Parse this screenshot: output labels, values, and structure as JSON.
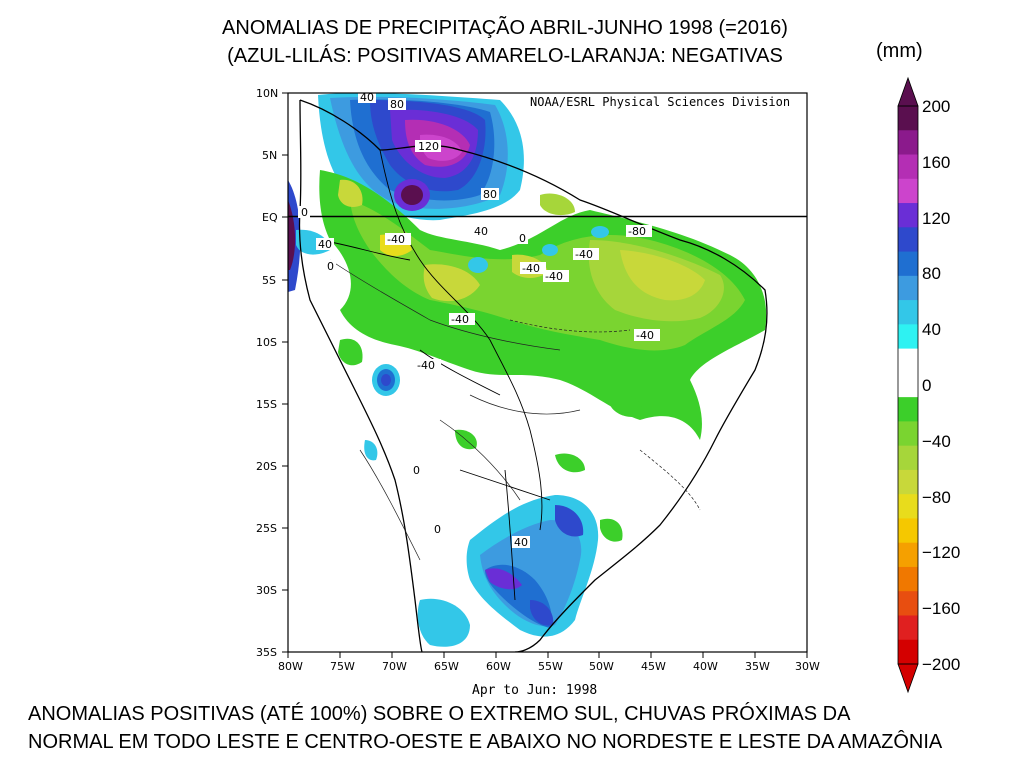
{
  "title": {
    "line1": "ANOMALIAS DE PRECIPITAÇÃO ABRIL-JUNHO 1998 (=2016)",
    "line2": "(AZUL-LILÁS: POSITIVAS   AMARELO-LARANJA: NEGATIVAS"
  },
  "units": "(mm)",
  "map": {
    "source": "NOAA/ESRL Physical Sciences Division",
    "period": "Apr to Jun: 1998",
    "lat_labels": [
      "10N",
      "5N",
      "EQ",
      "5S",
      "10S",
      "15S",
      "20S",
      "25S",
      "30S",
      "35S"
    ],
    "lon_labels": [
      "80W",
      "75W",
      "70W",
      "65W",
      "60W",
      "55W",
      "50W",
      "45W",
      "40W",
      "35W",
      "30W"
    ],
    "contour_labels": [
      "40",
      "80",
      "120",
      "80",
      "0",
      "-40",
      "40",
      "0",
      "-40",
      "40",
      "-40",
      "-80",
      "-40",
      "-40",
      "-40",
      "-40",
      "0",
      "40",
      "0",
      "0"
    ]
  },
  "colorbar": {
    "labels": [
      "200",
      "160",
      "120",
      "80",
      "40",
      "0",
      "−40",
      "−80",
      "−120",
      "−160",
      "−200"
    ],
    "colors": [
      "#5a0f4f",
      "#8b1a8c",
      "#b42eb4",
      "#cc44cc",
      "#6a2ed6",
      "#2e49cc",
      "#1f6fd1",
      "#3d9be0",
      "#33c7e8",
      "#2ef2f2",
      "#ffffff",
      "#ffffff",
      "#3ccf2a",
      "#7ad430",
      "#a6d63a",
      "#c8d83a",
      "#e8dc1c",
      "#f5c800",
      "#f5a000",
      "#f07800",
      "#e84e10",
      "#e02020",
      "#d40000"
    ]
  },
  "caption": {
    "line1": "ANOMALIAS POSITIVAS (ATÉ 100%) SOBRE O EXTREMO  SUL, CHUVAS PRÓXIMAS DA",
    "line2": "NORMAL EM TODO LESTE E CENTRO-OESTE E ABAIXO NO NORDESTE E  LESTE DA AMAZÔNIA"
  }
}
